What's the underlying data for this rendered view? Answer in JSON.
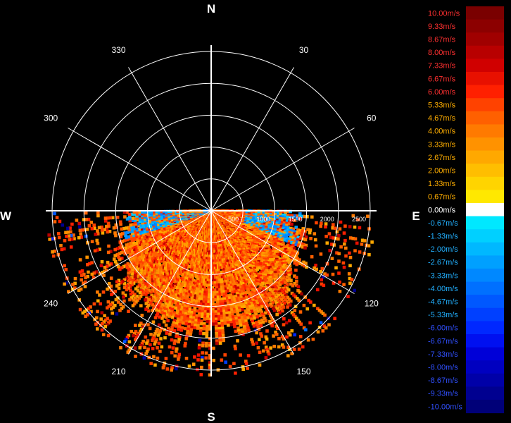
{
  "chart_data": {
    "type": "polar-heatmap",
    "title": "",
    "compass": {
      "north": "N",
      "east": "E",
      "south": "S",
      "west": "W"
    },
    "azimuth_labels": [
      {
        "deg": 30,
        "text": "30"
      },
      {
        "deg": 60,
        "text": "60"
      },
      {
        "deg": 120,
        "text": "120"
      },
      {
        "deg": 150,
        "text": "150"
      },
      {
        "deg": 210,
        "text": "210"
      },
      {
        "deg": 240,
        "text": "240"
      },
      {
        "deg": 300,
        "text": "300"
      },
      {
        "deg": 330,
        "text": "330"
      }
    ],
    "range_rings": [
      500,
      1000,
      1500,
      2000,
      2500
    ],
    "range_labels": [
      "500",
      "1000",
      "1500",
      "2000",
      "2500"
    ],
    "range_max": 2600,
    "spoke_interval_deg": 30,
    "grid": true,
    "data_sector": {
      "start_deg": 90,
      "end_deg": 270
    },
    "colorbar": {
      "placement": "right",
      "levels": [
        {
          "label": "10.00m/s",
          "value": 10.0,
          "color": "#7a0000"
        },
        {
          "label": "9.33m/s",
          "value": 9.33,
          "color": "#8c0000"
        },
        {
          "label": "8.67m/s",
          "value": 8.67,
          "color": "#a00000"
        },
        {
          "label": "8.00m/s",
          "value": 8.0,
          "color": "#b80000"
        },
        {
          "label": "7.33m/s",
          "value": 7.33,
          "color": "#d00000"
        },
        {
          "label": "6.67m/s",
          "value": 6.67,
          "color": "#e81000"
        },
        {
          "label": "6.00m/s",
          "value": 6.0,
          "color": "#ff2000"
        },
        {
          "label": "5.33m/s",
          "value": 5.33,
          "color": "#ff4200"
        },
        {
          "label": "4.67m/s",
          "value": 4.67,
          "color": "#ff6000"
        },
        {
          "label": "4.00m/s",
          "value": 4.0,
          "color": "#ff7a00"
        },
        {
          "label": "3.33m/s",
          "value": 3.33,
          "color": "#ff9200"
        },
        {
          "label": "2.67m/s",
          "value": 2.67,
          "color": "#ffa800"
        },
        {
          "label": "2.00m/s",
          "value": 2.0,
          "color": "#ffbe00"
        },
        {
          "label": "1.33m/s",
          "value": 1.33,
          "color": "#ffd400"
        },
        {
          "label": "0.67m/s",
          "value": 0.67,
          "color": "#ffe800"
        },
        {
          "label": "0.00m/s",
          "value": 0.0,
          "color": "#ffffff"
        },
        {
          "label": "-0.67m/s",
          "value": -0.67,
          "color": "#00e8ff"
        },
        {
          "label": "-1.33m/s",
          "value": -1.33,
          "color": "#00d0ff"
        },
        {
          "label": "-2.00m/s",
          "value": -2.0,
          "color": "#00b8ff"
        },
        {
          "label": "-2.67m/s",
          "value": -2.67,
          "color": "#00a0ff"
        },
        {
          "label": "-3.33m/s",
          "value": -3.33,
          "color": "#0088ff"
        },
        {
          "label": "-4.00m/s",
          "value": -4.0,
          "color": "#0070ff"
        },
        {
          "label": "-4.67m/s",
          "value": -4.67,
          "color": "#0058ff"
        },
        {
          "label": "-5.33m/s",
          "value": -5.33,
          "color": "#0040ff"
        },
        {
          "label": "-6.00m/s",
          "value": -6.0,
          "color": "#0028ff"
        },
        {
          "label": "-6.67m/s",
          "value": -6.67,
          "color": "#0010f0"
        },
        {
          "label": "-7.33m/s",
          "value": -7.33,
          "color": "#0000d8"
        },
        {
          "label": "-8.00m/s",
          "value": -8.0,
          "color": "#0000c0"
        },
        {
          "label": "-8.67m/s",
          "value": -8.67,
          "color": "#0000a8"
        },
        {
          "label": "-9.33m/s",
          "value": -9.33,
          "color": "#000090"
        },
        {
          "label": "-10.00m/s",
          "value": -10.0,
          "color": "#000078"
        }
      ]
    },
    "colors": {
      "background": "#000000",
      "grid": "#ffffff",
      "text": "#ffffff"
    }
  }
}
